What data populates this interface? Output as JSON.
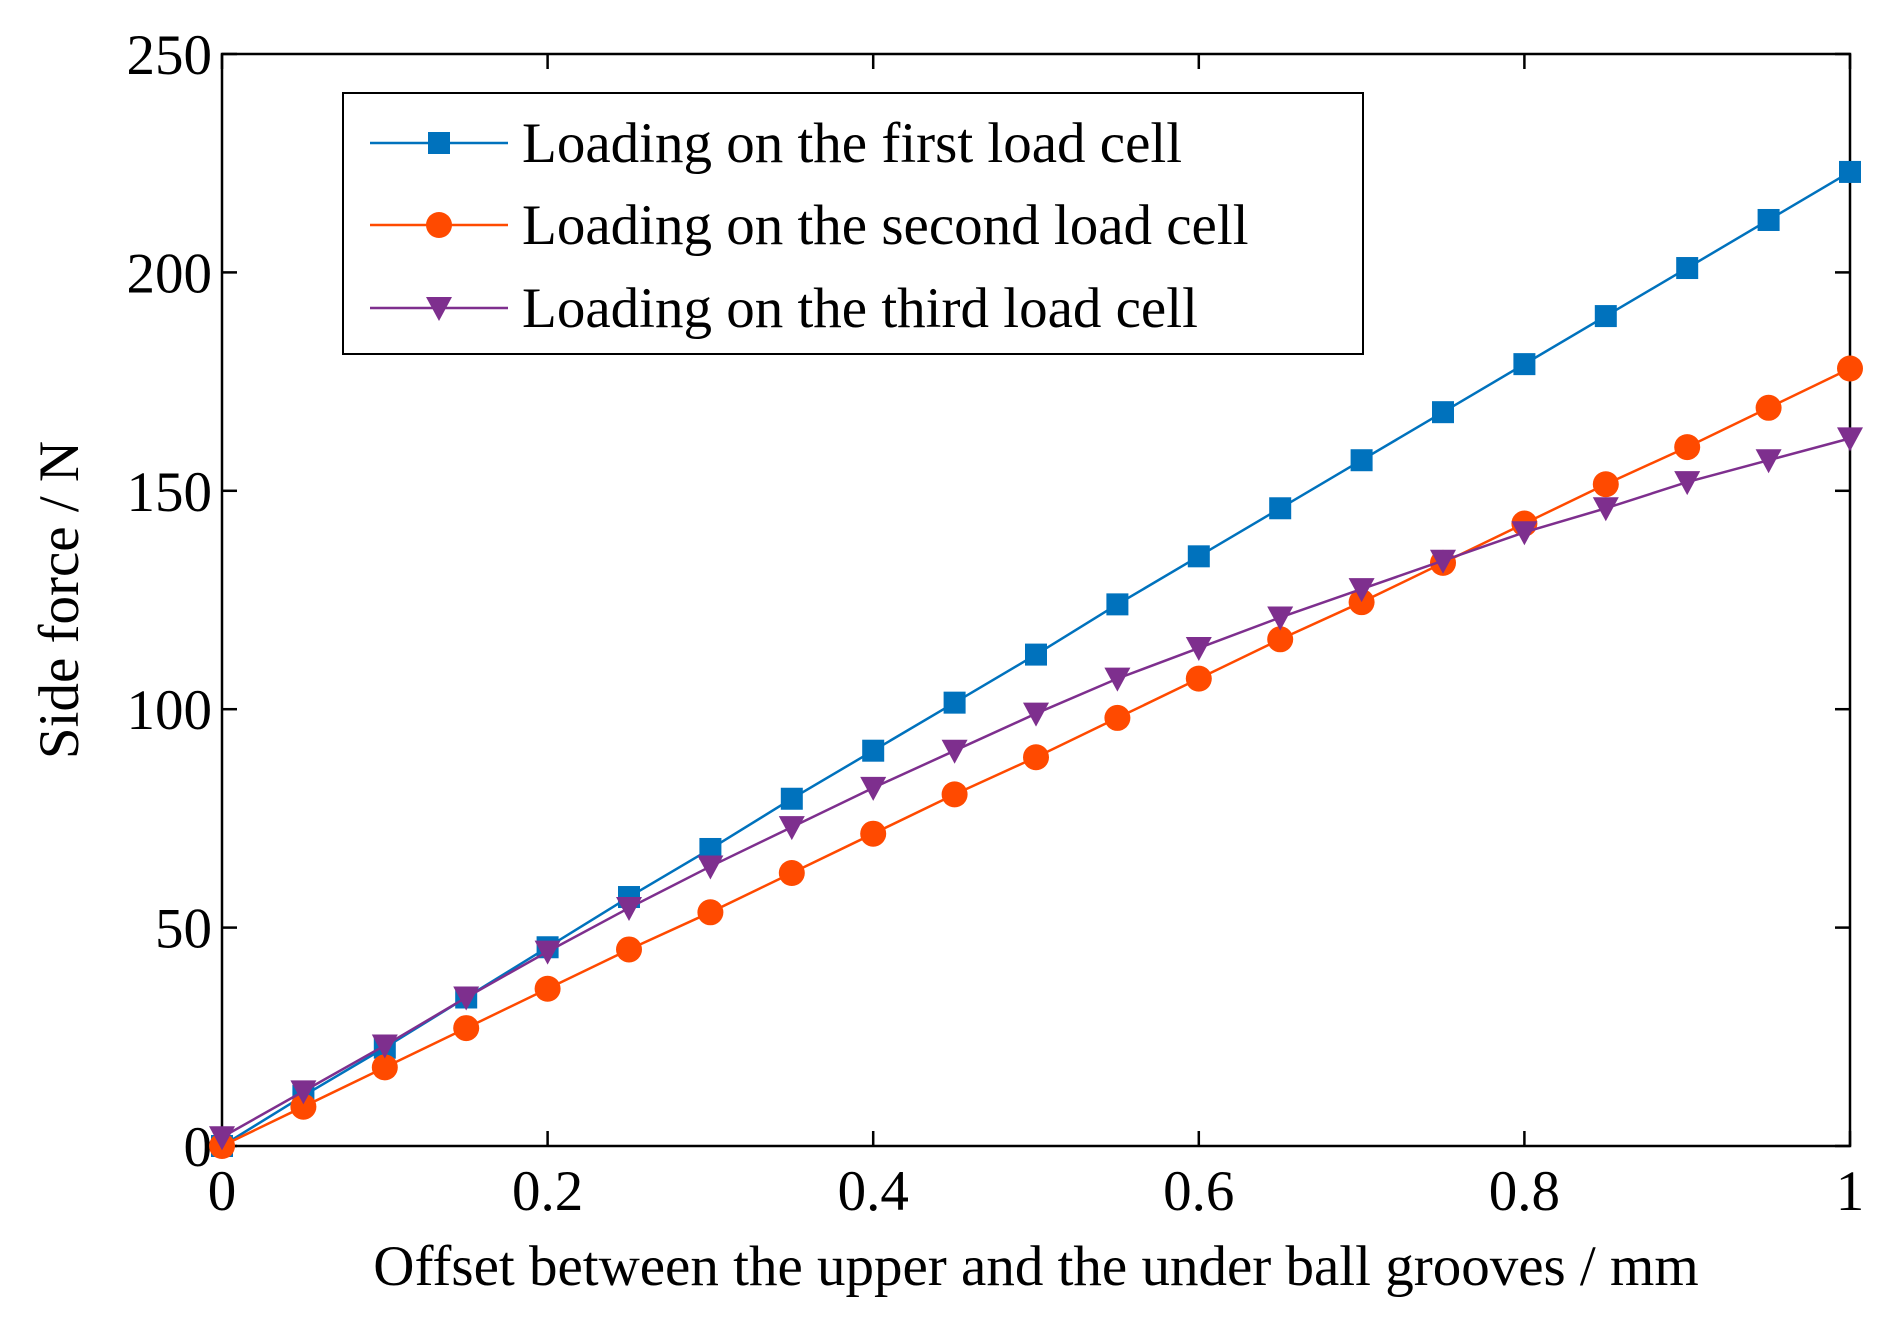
{
  "chart_data": {
    "type": "line",
    "title": "",
    "xlabel": "Offset between the upper and the under ball grooves / mm",
    "ylabel": "Side force / N",
    "xlim": [
      0,
      1
    ],
    "ylim": [
      0,
      250
    ],
    "xticks": [
      0,
      0.2,
      0.4,
      0.6,
      0.8,
      1
    ],
    "xtick_labels": [
      "0",
      "0.2",
      "0.4",
      "0.6",
      "0.8",
      "1"
    ],
    "yticks": [
      0,
      50,
      100,
      150,
      200,
      250
    ],
    "ytick_labels": [
      "0",
      "50",
      "100",
      "150",
      "200",
      "250"
    ],
    "grid": false,
    "legend_position": "top-left",
    "x": [
      0,
      0.05,
      0.1,
      0.15,
      0.2,
      0.25,
      0.3,
      0.35,
      0.4,
      0.45,
      0.5,
      0.55,
      0.6,
      0.65,
      0.7,
      0.75,
      0.8,
      0.85,
      0.9,
      0.95,
      1
    ],
    "series": [
      {
        "name": "Loading on the first load cell",
        "color": "#0072BD",
        "marker": "square",
        "values": [
          0,
          11.5,
          22.5,
          34,
          45.5,
          57,
          68,
          79.5,
          90.5,
          101.5,
          112.5,
          124,
          135,
          146,
          157,
          168,
          179,
          190,
          201,
          212,
          223
        ]
      },
      {
        "name": "Loading on the second load cell",
        "color": "#FF4A00",
        "marker": "circle",
        "values": [
          0,
          9,
          18,
          27,
          36,
          45,
          53.5,
          62.5,
          71.5,
          80.5,
          89,
          98,
          107,
          116,
          124.5,
          133.5,
          142.5,
          151.5,
          160,
          169,
          178
        ]
      },
      {
        "name": "Loading on the third load cell",
        "color": "#7E2F8E",
        "marker": "triangle-down",
        "values": [
          2,
          12.5,
          23,
          34,
          44.5,
          54.5,
          64,
          73,
          82,
          90.5,
          99,
          107,
          114,
          121,
          127.5,
          134,
          140.5,
          146,
          152,
          157,
          162
        ]
      }
    ]
  }
}
